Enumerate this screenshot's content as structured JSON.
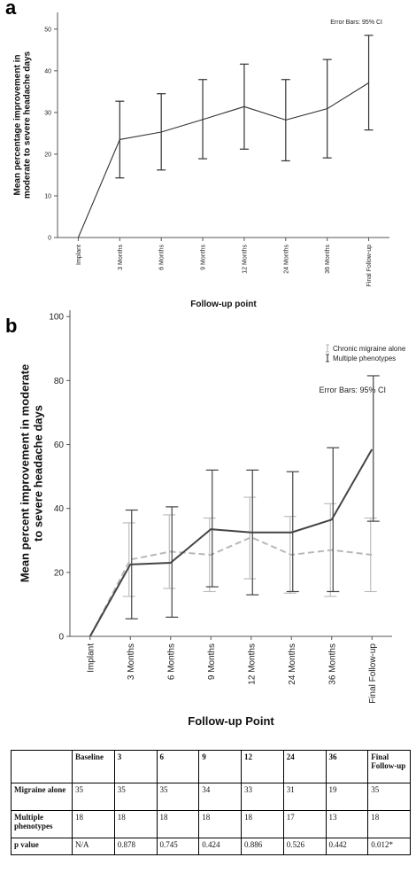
{
  "chart_data": [
    {
      "panel": "a",
      "type": "line",
      "note": "Error Bars: 95% CI",
      "xlabel": "Follow-up point",
      "ylabel": [
        "Mean percentage improvement in",
        "moderate to severe headache days"
      ],
      "categories": [
        "Implant",
        "3 Months",
        "6 Months",
        "9 Months",
        "12 Months",
        "24 Months",
        "36 Months",
        "Final Follow-up"
      ],
      "ylim": [
        0,
        54
      ],
      "yticks": [
        0,
        10,
        20,
        30,
        40,
        50
      ],
      "series": [
        {
          "values": [
            0,
            23.5,
            25.3,
            28.3,
            31.4,
            28.2,
            30.9,
            37.1
          ],
          "ci_low": [
            null,
            14.3,
            16.2,
            18.9,
            21.2,
            18.4,
            19.1,
            25.8
          ],
          "ci_high": [
            null,
            32.7,
            34.5,
            37.9,
            41.6,
            37.9,
            42.7,
            48.5
          ],
          "color": "#333333"
        }
      ]
    },
    {
      "panel": "b",
      "type": "line",
      "note": "Error Bars: 95% CI",
      "xlabel": "Follow-up Point",
      "ylabel": [
        "Mean percent improvement in moderate",
        "to severe headache days"
      ],
      "categories": [
        "Implant",
        "3 Months",
        "6 Months",
        "9 Months",
        "12 Months",
        "24 Months",
        "36 Months",
        "Final Follow-up"
      ],
      "ylim": [
        0,
        102
      ],
      "yticks": [
        0,
        20,
        40,
        60,
        80,
        100
      ],
      "legend_position": "top-right",
      "series": [
        {
          "name": "Chronic migraine alone",
          "style": "dashed",
          "color": "#b8b8b8",
          "values": [
            0,
            24,
            26.5,
            25.5,
            31,
            25.5,
            27,
            25.5
          ],
          "ci_low": [
            null,
            12.5,
            15,
            14,
            18,
            13.5,
            12.5,
            14
          ],
          "ci_high": [
            null,
            35.5,
            38,
            37,
            43.5,
            37.5,
            41.5,
            37
          ]
        },
        {
          "name": "Multiple phenotypes",
          "style": "solid",
          "color": "#444444",
          "values": [
            0,
            22.5,
            23,
            33.5,
            32.5,
            32.5,
            36.5,
            58.5
          ],
          "ci_low": [
            null,
            5.5,
            6,
            15.5,
            13,
            14,
            14,
            36
          ],
          "ci_high": [
            null,
            39.5,
            40.5,
            52,
            52,
            51.5,
            59,
            81.5
          ]
        }
      ]
    }
  ],
  "panel_labels": {
    "a": "a",
    "b": "b"
  },
  "table": {
    "columns": [
      "",
      "Baseline",
      "3",
      "6",
      "9",
      "12",
      "24",
      "36",
      "Final Follow-up"
    ],
    "rows": [
      {
        "label": "Migraine alone",
        "cells": [
          "35",
          "35",
          "35",
          "34",
          "33",
          "31",
          "19",
          "35"
        ]
      },
      {
        "label": "Multiple phenotypes",
        "cells": [
          "18",
          "18",
          "18",
          "18",
          "18",
          "17",
          "13",
          "18"
        ]
      },
      {
        "label": "p value",
        "cells": [
          "N/A",
          "0.878",
          "0.745",
          "0.424",
          "0.886",
          "0.526",
          "0.442",
          "0.012*"
        ]
      }
    ]
  }
}
